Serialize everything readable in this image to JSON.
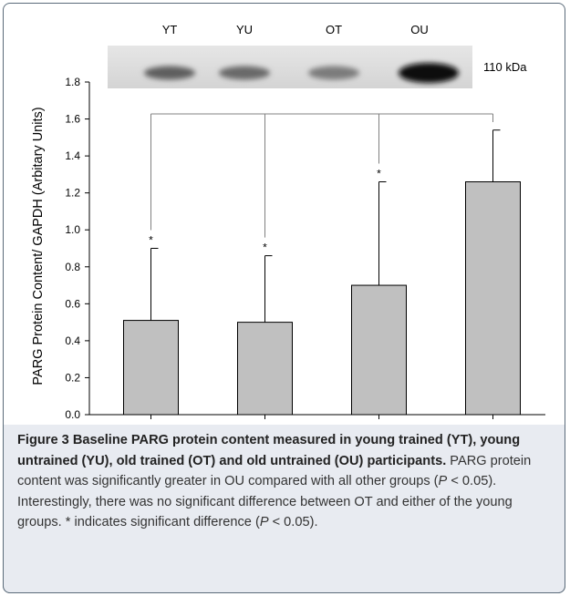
{
  "figure": {
    "label": "Figure 3",
    "title": "Baseline PARG protein content measured in young trained (YT), young untrained (YU), old trained (OT) and old untrained (OU) participants.",
    "caption_body": [
      {
        "text": " PARG protein content was significantly greater in OU compared with all other groups ("
      },
      {
        "text": "P",
        "italic": true
      },
      {
        "text": " < 0.05). Interestingly, there was no significant difference between OT and either of the young groups. * indicates significant difference ("
      },
      {
        "text": "P",
        "italic": true
      },
      {
        "text": " < 0.05)."
      }
    ]
  },
  "blot": {
    "lane_labels": [
      "YT",
      "YU",
      "OT",
      "OU"
    ],
    "band_label": "110 kDa",
    "band_intensity": [
      0.55,
      0.5,
      0.4,
      1.0
    ]
  },
  "colors": {
    "bar_fill": "#c0c0c0",
    "bar_stroke": "#000000",
    "axis": "#000000",
    "bracket": "#808080",
    "caption_bg": "#e8ebf1",
    "frame": "#5b6b7a"
  },
  "chart_data": {
    "type": "bar",
    "categories": [
      "YT",
      "YU",
      "OT",
      "OU"
    ],
    "values": [
      0.51,
      0.5,
      0.7,
      1.26
    ],
    "error_upper": [
      0.9,
      0.86,
      1.26,
      1.54
    ],
    "significance_markers": [
      "*",
      "*",
      "*",
      ""
    ],
    "significance_bracket": "OU vs YT, YU, OT",
    "ylabel": "PARG Protein Content/ GAPDH (Arbitary Units)",
    "xlabel": "",
    "ylim": [
      0,
      1.8
    ],
    "yticks": [
      "0.0",
      "0.2",
      "0.4",
      "0.6",
      "0.8",
      "1.0",
      "1.2",
      "1.4",
      "1.6",
      "1.8"
    ],
    "grid": false
  }
}
